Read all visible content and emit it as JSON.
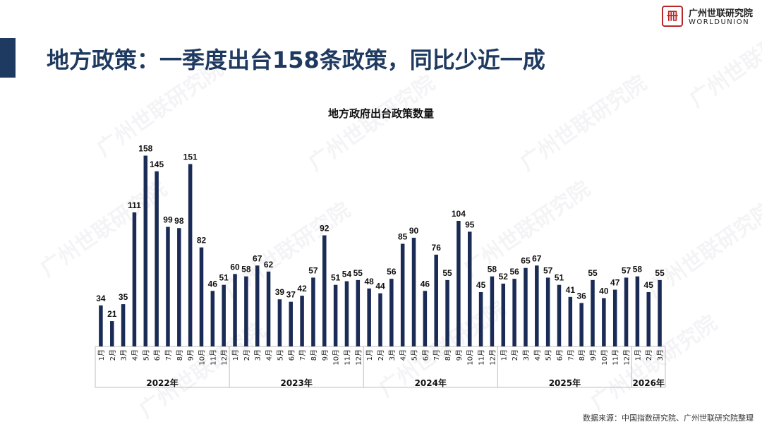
{
  "title": "地方政策：一季度出台158条政策，同比少近一成",
  "logo": {
    "mark": "冊",
    "name_cn": "广州世联研究院",
    "name_en": "WORLDUNION",
    "color": "#b8272d"
  },
  "source": "数据来源：中国指数研究院、广州世联研究院整理",
  "watermark": "广州世联研究院",
  "colors": {
    "bar": "#1a2b55",
    "title": "#1f3a60",
    "accent_bar": "#1f3a60"
  },
  "chart_data": {
    "type": "bar",
    "title": "地方政府出台政策数量",
    "xlabel": "",
    "ylabel": "",
    "categories": [
      "1月",
      "2月",
      "3月",
      "4月",
      "5月",
      "6月",
      "7月",
      "8月",
      "9月",
      "10月",
      "11月",
      "12月",
      "1月",
      "2月",
      "3月",
      "4月",
      "5月",
      "6月",
      "7月",
      "8月",
      "9月",
      "10月",
      "11月",
      "12月",
      "1月",
      "2月",
      "3月",
      "4月",
      "5月",
      "6月",
      "7月",
      "8月",
      "9月",
      "10月",
      "11月",
      "12月",
      "1月",
      "2月",
      "3月",
      "4月",
      "5月",
      "6月",
      "7月",
      "8月",
      "9月",
      "10月",
      "11月",
      "12月",
      "1月",
      "2月",
      "3月"
    ],
    "values": [
      34,
      21,
      35,
      111,
      158,
      145,
      99,
      98,
      151,
      82,
      46,
      51,
      60,
      58,
      67,
      62,
      39,
      37,
      42,
      57,
      92,
      51,
      54,
      55,
      48,
      44,
      56,
      85,
      90,
      46,
      76,
      55,
      104,
      95,
      45,
      58,
      52,
      56,
      65,
      67,
      57,
      51,
      41,
      36,
      55,
      40,
      47,
      57,
      58,
      45,
      55
    ],
    "groups": [
      {
        "label": "2022年",
        "count": 12
      },
      {
        "label": "2023年",
        "count": 12
      },
      {
        "label": "2024年",
        "count": 12
      },
      {
        "label": "2025年",
        "count": 12
      },
      {
        "label": "2026年",
        "count": 3
      }
    ],
    "ylim": [
      0,
      170
    ],
    "grid": false,
    "legend": "none"
  }
}
